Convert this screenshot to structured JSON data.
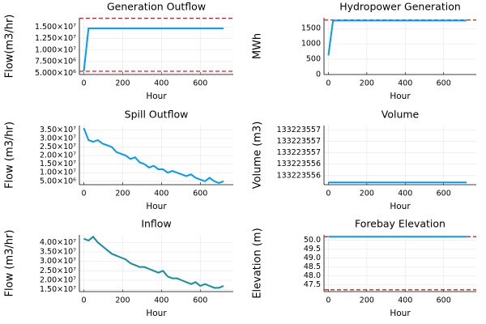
{
  "chart_data": [
    {
      "type": "line",
      "title": "Generation Outflow",
      "x_label": "Hour",
      "y_label": "Flow(m3/hr)",
      "x": [
        0,
        24,
        720
      ],
      "series": [
        {
          "color": "#009afa",
          "values": [
            5400000,
            14700000,
            14700000
          ]
        }
      ],
      "xlim": [
        -23,
        770
      ],
      "xticks": [
        0,
        200,
        400,
        600
      ],
      "ylim": [
        4700000,
        17000000
      ],
      "yticks": [
        {
          "value": 5000000,
          "label": "5.000×10⁶"
        },
        {
          "value": 7500000,
          "label": "7.500×10⁶"
        },
        {
          "value": 10000000,
          "label": "1.000×10⁷"
        },
        {
          "value": 12500000,
          "label": "1.250×10⁷"
        },
        {
          "value": 15000000,
          "label": "1.500×10⁷"
        }
      ],
      "hlines": [
        16900000,
        5400000
      ],
      "hline_color": "#e31a1c",
      "grid": true
    },
    {
      "type": "line",
      "title": "Hydropower Generation",
      "x_label": "Hour",
      "y_label": "MWh",
      "x": [
        0,
        24,
        720
      ],
      "series": [
        {
          "color": "#009afa",
          "values": [
            620,
            1760,
            1760
          ]
        }
      ],
      "xlim": [
        -23,
        770
      ],
      "xticks": [
        0,
        200,
        400,
        600
      ],
      "ylim": [
        0,
        1850
      ],
      "yticks": [
        0,
        500,
        1000,
        1500
      ],
      "hlines": [
        1780
      ],
      "hline_color": "#e31a1c",
      "grid": true
    },
    {
      "type": "line",
      "title": "Spill Outflow",
      "x_label": "Hour",
      "y_label": "Flow (m3/hr)",
      "x": [
        0,
        24,
        48,
        72,
        96,
        120,
        144,
        168,
        192,
        216,
        240,
        264,
        288,
        312,
        336,
        360,
        384,
        408,
        432,
        456,
        480,
        504,
        528,
        552,
        576,
        600,
        624,
        648,
        672,
        696,
        720
      ],
      "series": [
        {
          "color": "#009afa",
          "values": [
            36000000,
            29000000,
            28000000,
            29000000,
            27000000,
            26000000,
            25000000,
            22000000,
            21000000,
            20000000,
            18000000,
            19000000,
            16000000,
            15000000,
            13000000,
            14000000,
            12000000,
            12000000,
            10000000,
            11000000,
            10000000,
            9000000,
            8000000,
            9000000,
            7000000,
            6000000,
            5000000,
            7000000,
            5000000,
            4000000,
            5000000
          ]
        }
      ],
      "xlim": [
        -23,
        770
      ],
      "xticks": [
        0,
        200,
        400,
        600
      ],
      "ylim": [
        3000000,
        37500000
      ],
      "yticks": [
        {
          "value": 5000000,
          "label": "5.00×10⁶"
        },
        {
          "value": 10000000,
          "label": "1.00×10⁷"
        },
        {
          "value": 15000000,
          "label": "1.50×10⁷"
        },
        {
          "value": 20000000,
          "label": "2.00×10⁷"
        },
        {
          "value": 25000000,
          "label": "2.50×10⁷"
        },
        {
          "value": 30000000,
          "label": "3.00×10⁷"
        },
        {
          "value": 35000000,
          "label": "3.50×10⁷"
        }
      ],
      "grid": true
    },
    {
      "type": "line",
      "title": "Volume",
      "x_label": "Hour",
      "y_label": "Volume (m3)",
      "x": [
        0,
        720
      ],
      "series": [
        {
          "color": "#009afa",
          "values": [
            133223555.85,
            133223555.85
          ]
        }
      ],
      "xlim": [
        -23,
        770
      ],
      "xticks": [
        0,
        200,
        400,
        600
      ],
      "ylim": [
        133223555.8,
        133223557.1
      ],
      "yticks": [
        {
          "value": 133223556.0,
          "label": "133223556"
        },
        {
          "value": 133223556.25,
          "label": "133223556"
        },
        {
          "value": 133223556.5,
          "label": "133223557"
        },
        {
          "value": 133223556.75,
          "label": "133223557"
        },
        {
          "value": 133223557.0,
          "label": "133223557"
        }
      ],
      "grid": true
    },
    {
      "type": "line",
      "title": "Inflow",
      "x_label": "Hour",
      "y_label": "Flow (m3/hr)",
      "x": [
        0,
        24,
        48,
        72,
        96,
        120,
        144,
        168,
        192,
        216,
        240,
        264,
        288,
        312,
        336,
        360,
        384,
        408,
        432,
        456,
        480,
        504,
        528,
        552,
        576,
        600,
        624,
        648,
        672,
        696,
        720
      ],
      "series": [
        {
          "color": "#0f8fa0",
          "values": [
            42000000,
            41000000,
            43000000,
            40000000,
            38000000,
            36000000,
            34000000,
            33000000,
            32000000,
            31000000,
            29000000,
            28000000,
            27000000,
            27000000,
            26000000,
            25000000,
            24000000,
            25000000,
            22000000,
            21000000,
            21000000,
            20000000,
            19000000,
            18000000,
            19000000,
            17000000,
            18000000,
            17000000,
            16000000,
            16000000,
            17000000
          ]
        }
      ],
      "xlim": [
        -23,
        770
      ],
      "xticks": [
        0,
        200,
        400,
        600
      ],
      "ylim": [
        14000000,
        44000000
      ],
      "yticks": [
        {
          "value": 15000000,
          "label": "1.50×10⁷"
        },
        {
          "value": 20000000,
          "label": "2.00×10⁷"
        },
        {
          "value": 25000000,
          "label": "2.50×10⁷"
        },
        {
          "value": 30000000,
          "label": "3.00×10⁷"
        },
        {
          "value": 35000000,
          "label": "3.50×10⁷"
        },
        {
          "value": 40000000,
          "label": "4.00×10⁷"
        }
      ],
      "grid": true
    },
    {
      "type": "line",
      "title": "Forebay Elevation",
      "x_label": "Hour",
      "y_label": "Elevation (m)",
      "x": [
        0,
        720
      ],
      "series": [
        {
          "color": "#009afa",
          "values": [
            50.2,
            50.2
          ]
        }
      ],
      "xlim": [
        -23,
        770
      ],
      "xticks": [
        0,
        200,
        400,
        600
      ],
      "ylim": [
        47.1,
        50.3
      ],
      "yticks": [
        {
          "value": 47.5,
          "label": "47.5"
        },
        {
          "value": 48,
          "label": "48.0"
        },
        {
          "value": 48.5,
          "label": "48.5"
        },
        {
          "value": 49,
          "label": "49.0"
        },
        {
          "value": 49.5,
          "label": "49.5"
        },
        {
          "value": 50,
          "label": "50.0"
        }
      ],
      "hlines": [
        50.2,
        47.2
      ],
      "hline_color": "#e31a1c",
      "grid": true
    }
  ]
}
